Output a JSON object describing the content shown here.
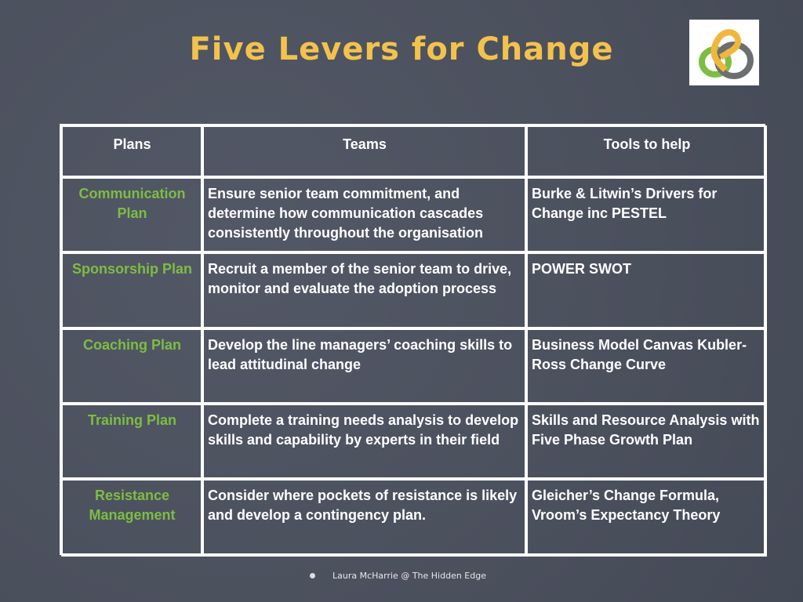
{
  "title": "Five Levers for Change",
  "logo": {
    "name": "interlocking-rings-logo",
    "colors": [
      "#f0b73e",
      "#7dbd43",
      "#6d6e70"
    ]
  },
  "table": {
    "headers": [
      "Plans",
      "Teams",
      "Tools to help"
    ],
    "rows": [
      {
        "plan": "Communication Plan",
        "teams": "Ensure senior team commitment,  and determine how communication cascades consistently throughout the organisation",
        "tools": "Burke & Litwin’s Drivers for Change inc PESTEL"
      },
      {
        "plan": "Sponsorship Plan",
        "teams": "Recruit a member of the senior team to drive, monitor and evaluate the adoption process",
        "tools": "POWER SWOT"
      },
      {
        "plan": "Coaching Plan",
        "teams": "Develop the line managers’ coaching skills to lead attitudinal change",
        "tools": "Business Model Canvas Kubler-Ross Change Curve"
      },
      {
        "plan": "Training Plan",
        "teams": "Complete a training needs analysis to develop skills and capability by experts in their field",
        "tools": "Skills and Resource Analysis with Five Phase Growth Plan"
      },
      {
        "plan": "Resistance Management",
        "teams": "Consider where pockets of resistance is likely and develop a contingency plan.",
        "tools": "Gleicher’s Change Formula, Vroom’s Expectancy Theory"
      }
    ]
  },
  "footer": "Laura McHarrie @ The Hidden Edge",
  "colors": {
    "title": "#f3c24d",
    "plan": "#7dbd43",
    "background": "#4b505d"
  }
}
